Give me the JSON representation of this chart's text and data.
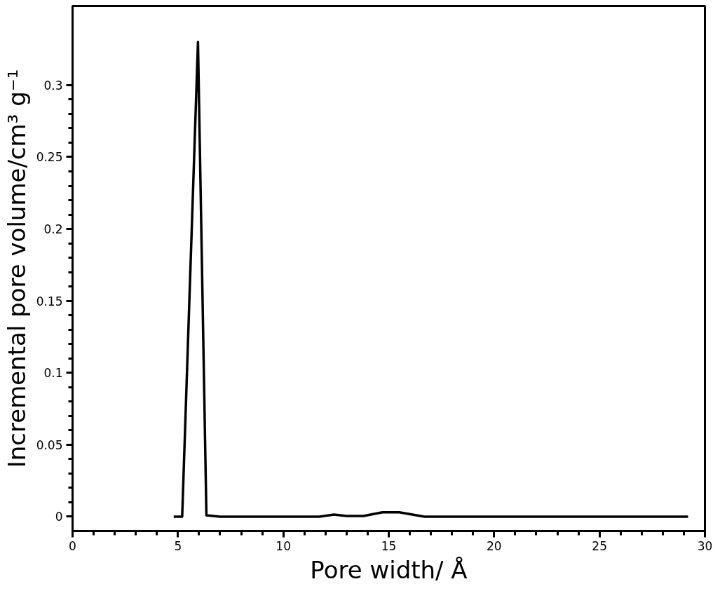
{
  "chart_data": {
    "type": "line",
    "xlabel": "Pore width/ Å",
    "ylabel": "Incremental pore volume/cm³ g⁻¹",
    "series": [
      {
        "color": "#000000",
        "x": [
          4.8,
          5.2,
          5.95,
          6.35,
          7,
          10,
          11.7,
          12.4,
          13,
          13.8,
          14.7,
          15.5,
          16.7,
          20,
          25,
          29.2
        ],
        "values": [
          0,
          0,
          0.33,
          0.001,
          0,
          0,
          0,
          0.0015,
          0.0005,
          0.0005,
          0.003,
          0.003,
          0,
          0,
          0,
          0
        ]
      }
    ],
    "xlim": [
      0,
      30
    ],
    "xticks": [
      0,
      5,
      10,
      15,
      20,
      25,
      30
    ],
    "ylim": [
      -0.01,
      0.355
    ],
    "yticks": [
      0,
      0.05,
      0.1,
      0.15,
      0.2,
      0.25,
      0.3
    ],
    "grid": false,
    "marker": "none",
    "line_style": "solid"
  }
}
